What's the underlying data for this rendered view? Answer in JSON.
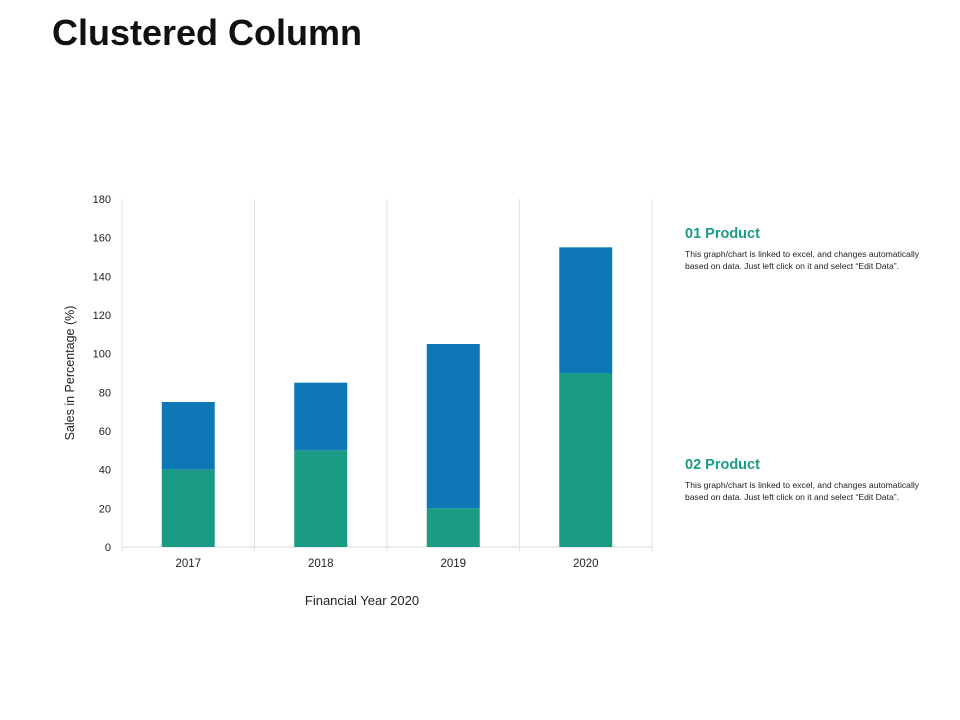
{
  "page": {
    "title": "Clustered Column"
  },
  "legend": [
    {
      "title": "01 Product",
      "color": "#1a9b83",
      "text": "This graph/chart is linked to excel, and changes automatically based on data. Just left click on it and select “Edit Data”."
    },
    {
      "title": "02 Product",
      "color": "#1a9b83",
      "text": "This graph/chart is linked to excel, and changes automatically based on data. Just left click on it and select “Edit Data”."
    }
  ],
  "chart_data": {
    "type": "bar",
    "stacked": true,
    "categories": [
      "2017",
      "2018",
      "2019",
      "2020"
    ],
    "series": [
      {
        "values": [
          40,
          50,
          20,
          90
        ],
        "color": "#1a9b83"
      },
      {
        "values": [
          35,
          35,
          85,
          65
        ],
        "color": "#0e78b7"
      }
    ],
    "xlabel": "Financial Year 2020",
    "ylabel": "Sales in Percentage (%)",
    "ylim": [
      0,
      180
    ],
    "yticks": [
      "0",
      "20",
      "40",
      "60",
      "80",
      "100",
      "120",
      "140",
      "160",
      "180"
    ],
    "grid": "vertical category separators"
  }
}
